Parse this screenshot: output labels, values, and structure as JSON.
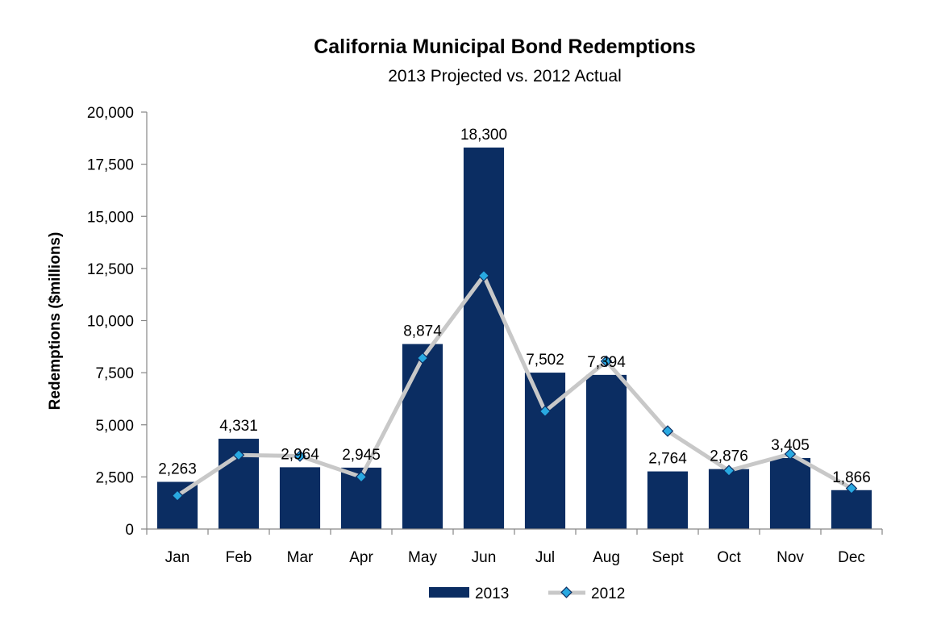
{
  "chart_data": {
    "type": "bar",
    "title": "California Municipal Bond Redemptions",
    "subtitle": "2013 Projected vs. 2012 Actual",
    "xlabel": "",
    "ylabel": "Redemptions ($millions)",
    "ylim": [
      0,
      20000
    ],
    "yticks": [
      0,
      2500,
      5000,
      7500,
      10000,
      12500,
      15000,
      17500,
      20000
    ],
    "ytick_labels": [
      "0",
      "2,500",
      "5,000",
      "7,500",
      "10,000",
      "12,500",
      "15,000",
      "17,500",
      "20,000"
    ],
    "categories": [
      "Jan",
      "Feb",
      "Mar",
      "Apr",
      "May",
      "Jun",
      "Jul",
      "Aug",
      "Sept",
      "Oct",
      "Nov",
      "Dec"
    ],
    "grid": false,
    "legend_position": "bottom",
    "series": [
      {
        "name": "2013",
        "type": "bar",
        "color": "#0b2d62",
        "values": [
          2263,
          4331,
          2964,
          2945,
          8874,
          18300,
          7502,
          7394,
          2764,
          2876,
          3405,
          1866
        ],
        "data_labels": [
          "2,263",
          "4,331",
          "2,964",
          "2,945",
          "8,874",
          "18,300",
          "7,502",
          "7,394",
          "2,764",
          "2,876",
          "3,405",
          "1,866"
        ]
      },
      {
        "name": "2012",
        "type": "line",
        "line_color": "#c8c8c8",
        "marker_color": "#29a9e1",
        "marker_edge_color": "#0b2d62",
        "values": [
          1600,
          3550,
          3500,
          2500,
          8200,
          12150,
          5650,
          8050,
          4700,
          2800,
          3600,
          1950
        ]
      }
    ]
  }
}
